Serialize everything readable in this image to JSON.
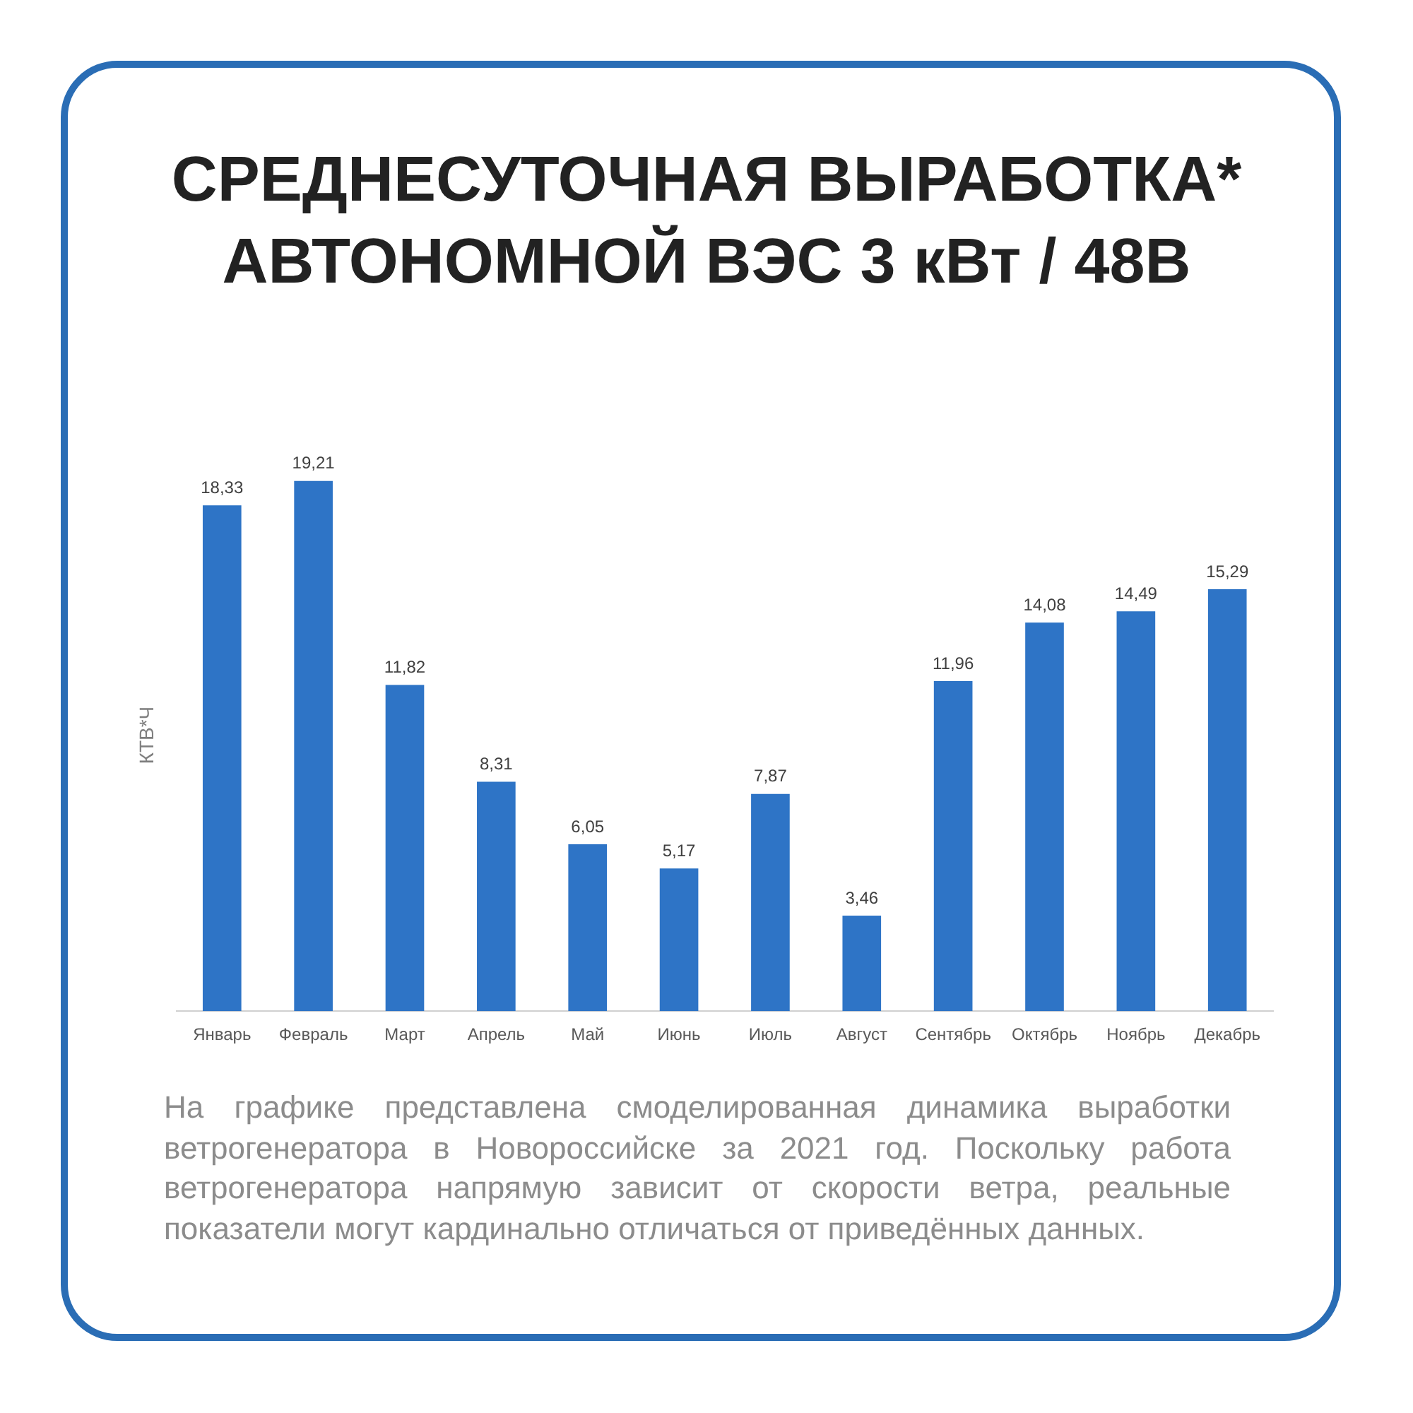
{
  "chart_data": {
    "type": "bar",
    "title": "СРЕДНЕСУТОЧНАЯ ВЫРАБОТКА* АВТОНОМНОЙ ВЭС 3 кВт / 48В",
    "ylabel": "КТВ*Ч",
    "categories": [
      "Январь",
      "Февраль",
      "Март",
      "Апрель",
      "Май",
      "Июнь",
      "Июль",
      "Август",
      "Сентябрь",
      "Октябрь",
      "Ноябрь",
      "Декабрь"
    ],
    "values": [
      18.33,
      19.21,
      11.82,
      8.31,
      6.05,
      5.17,
      7.87,
      3.46,
      11.96,
      14.08,
      14.49,
      15.29
    ],
    "value_labels": [
      "18,33",
      "19,21",
      "11,82",
      "8,31",
      "6,05",
      "5,17",
      "7,87",
      "3,46",
      "11,96",
      "14,08",
      "14,49",
      "15,29"
    ],
    "color": "#2e74c6",
    "tick_labels": "x",
    "annotations": [
      "На графике представлена смоделированная динамика выработки ветрогенератора в Новороссийске за 2021 год. Поскольку работа ветрогенератора напрямую зависит от скорости ветра, реальные показатели могут кардинально отличаться от приведённых данных."
    ]
  }
}
